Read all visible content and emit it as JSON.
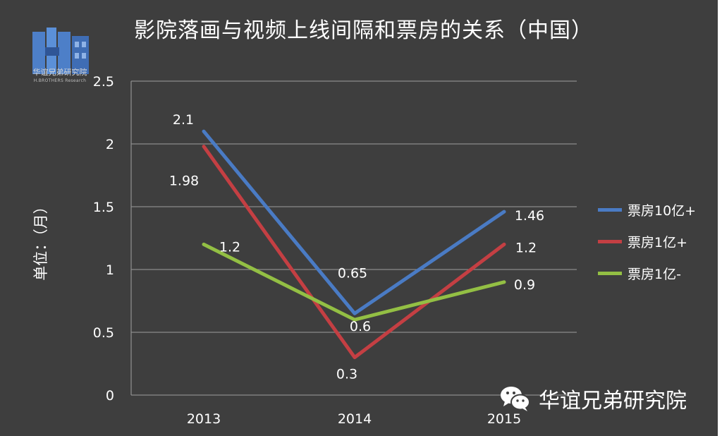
{
  "title": "影院落画与视频上线间隔和票房的关系（中国）",
  "logo": {
    "name": "华谊兄弟研究院",
    "subtitle": "H.BROTHERS Research"
  },
  "watermark": {
    "icon": "wechat-icon",
    "text": "华谊兄弟研究院"
  },
  "colors": {
    "background": "#3e3e3e",
    "grid": "#8c8c8c",
    "series": [
      "#4a7bc4",
      "#c43f43",
      "#93bf44"
    ]
  },
  "chart_data": {
    "type": "line",
    "title": "影院落画与视频上线间隔和票房的关系（中国）",
    "ylabel": "单位：（月）",
    "xlabel": "",
    "categories": [
      "2013",
      "2014",
      "2015"
    ],
    "ylim": [
      0,
      2.5
    ],
    "yticks": [
      0,
      0.5,
      1,
      1.5,
      2,
      2.5
    ],
    "ytick_labels": [
      "0",
      "0.5",
      "1",
      "1.5",
      "2",
      "2.5"
    ],
    "grid": true,
    "legend_position": "right",
    "series": [
      {
        "name": "票房10亿+",
        "values": [
          2.1,
          0.65,
          1.46
        ],
        "labels": [
          "2.1",
          "0.65",
          "1.46"
        ]
      },
      {
        "name": "票房1亿+",
        "values": [
          1.98,
          0.3,
          1.2
        ],
        "labels": [
          "1.98",
          "0.3",
          "1.2"
        ]
      },
      {
        "name": "票房1亿-",
        "values": [
          1.2,
          0.6,
          0.9
        ],
        "labels": [
          "1.2",
          "0.6",
          "0.9"
        ]
      }
    ]
  }
}
